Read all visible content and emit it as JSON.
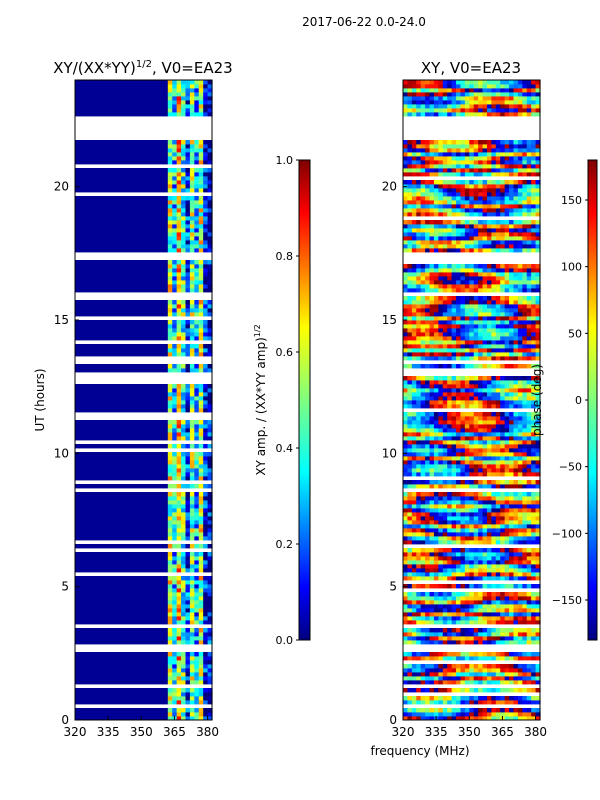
{
  "figure": {
    "suptitle": "2017-06-22 0.0-24.0",
    "shared_xlabel": "frequency (MHz)"
  },
  "chart_data": [
    {
      "type": "heatmap",
      "title_main": "XY/(XX*YY)",
      "title_sup": "1/2",
      "title_rest": ", V0=EA23",
      "ylabel": "UT (hours)",
      "xlim": [
        320,
        382
      ],
      "ylim": [
        0,
        24
      ],
      "xticks": [
        "320",
        "335",
        "350",
        "365",
        "380"
      ],
      "xtick_values": [
        320,
        335,
        350,
        365,
        380
      ],
      "yticks": [
        "0",
        "5",
        "10",
        "15",
        "20"
      ],
      "ytick_values": [
        0,
        5,
        10,
        15,
        20
      ],
      "colorbar": {
        "label_main": "XY amp. / (XX*YY amp)",
        "label_sup": "1/2",
        "range": [
          0.0,
          1.0
        ],
        "ticks": [
          "0.0",
          "0.2",
          "0.4",
          "0.6",
          "0.8",
          "1.0"
        ],
        "tick_values": [
          0.0,
          0.2,
          0.4,
          0.6,
          0.8,
          1.0
        ],
        "colormap": "jet"
      },
      "value_summary": {
        "below_362_MHz": 0.02,
        "bands_above_362_MHz": [
          {
            "from": 362,
            "to": 364,
            "value": 0.55
          },
          {
            "from": 364,
            "to": 366,
            "value": 0.35
          },
          {
            "from": 366,
            "to": 368,
            "value": 0.65
          },
          {
            "from": 368,
            "to": 371,
            "value": 0.45
          },
          {
            "from": 371,
            "to": 373,
            "value": 0.15
          },
          {
            "from": 373,
            "to": 375,
            "value": 0.5
          },
          {
            "from": 375,
            "to": 377,
            "value": 0.3
          },
          {
            "from": 377,
            "to": 379,
            "value": 0.55
          },
          {
            "from": 379,
            "to": 382,
            "value": 0.1
          }
        ]
      },
      "data_gaps_ut_hours": [
        [
          21.8,
          22.6
        ],
        [
          17.2,
          17.5
        ],
        [
          15.9,
          16.0
        ],
        [
          12.9,
          13.0
        ],
        [
          9.85,
          9.95
        ],
        [
          8.55,
          8.65
        ],
        [
          3.4,
          3.6
        ],
        [
          2.6,
          2.8
        ],
        [
          1.2,
          1.3
        ],
        [
          0.5,
          0.6
        ]
      ]
    },
    {
      "type": "heatmap",
      "title": "XY, V0=EA23",
      "ylabel": "",
      "xlim": [
        320,
        382
      ],
      "ylim": [
        0,
        24
      ],
      "xticks": [
        "320",
        "335",
        "350",
        "365",
        "380"
      ],
      "xtick_values": [
        320,
        335,
        350,
        365,
        380
      ],
      "yticks": [
        "0",
        "5",
        "10",
        "15",
        "20"
      ],
      "ytick_values": [
        0,
        5,
        10,
        15,
        20
      ],
      "colorbar": {
        "label": "phase (deg)",
        "range": [
          -180,
          180
        ],
        "ticks": [
          "−150",
          "−100",
          "−50",
          "0",
          "50",
          "100",
          "150"
        ],
        "tick_values": [
          -150,
          -100,
          -50,
          0,
          50,
          100,
          150
        ],
        "colormap": "jet"
      },
      "data_gaps_ut_hours": [
        [
          21.8,
          22.6
        ],
        [
          17.2,
          17.5
        ],
        [
          15.9,
          16.0
        ],
        [
          12.9,
          13.0
        ],
        [
          9.85,
          9.95
        ],
        [
          8.55,
          8.65
        ],
        [
          3.4,
          3.6
        ],
        [
          2.6,
          2.8
        ],
        [
          1.2,
          1.3
        ],
        [
          0.5,
          0.6
        ]
      ]
    }
  ]
}
